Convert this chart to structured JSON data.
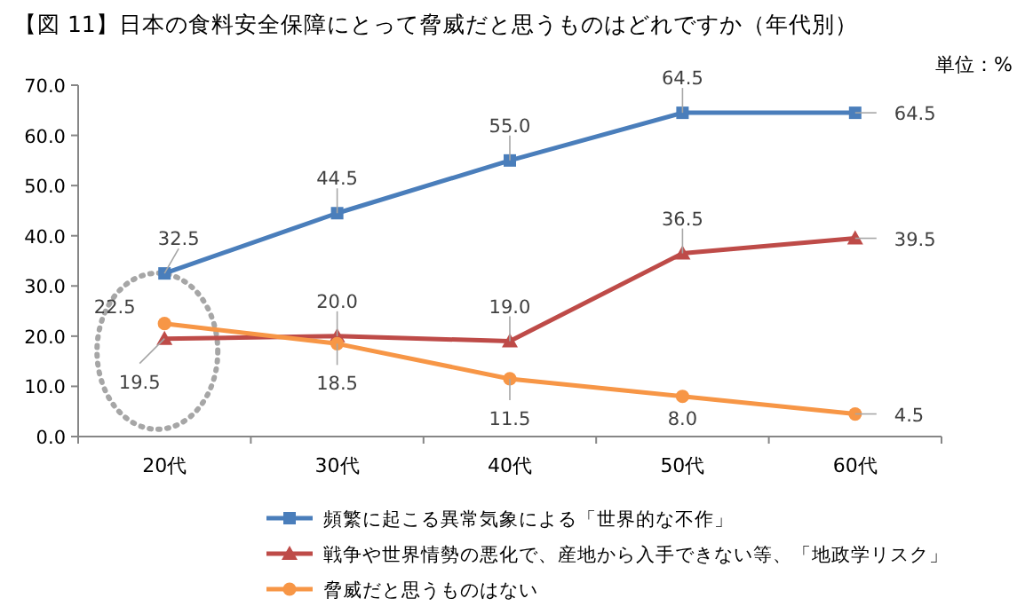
{
  "chart_data": {
    "type": "line",
    "title": "【図 11】日本の食料安全保障にとって脅威だと思うものはどれですか（年代別）",
    "annotations": [
      "単位：%"
    ],
    "categories": [
      "20代",
      "30代",
      "40代",
      "50代",
      "60代"
    ],
    "ylim": [
      0,
      70
    ],
    "yticks": [
      {
        "value": 0,
        "label": "0.0"
      },
      {
        "value": 10,
        "label": "10.0"
      },
      {
        "value": 20,
        "label": "20.0"
      },
      {
        "value": 30,
        "label": "30.0"
      },
      {
        "value": 40,
        "label": "40.0"
      },
      {
        "value": 50,
        "label": "50.0"
      },
      {
        "value": 60,
        "label": "60.0"
      },
      {
        "value": 70,
        "label": "70.0"
      }
    ],
    "grid": false,
    "legend": "bottom",
    "series": [
      {
        "name": "頻繁に起こる異常気象による「世界的な不作」",
        "color": "#4a7ebb",
        "marker": "square",
        "values": [
          32.5,
          44.5,
          55.0,
          64.5,
          64.5
        ],
        "value_labels": [
          "32.5",
          "44.5",
          "55.0",
          "64.5",
          "64.5"
        ]
      },
      {
        "name": "戦争や世界情勢の悪化で、産地から入手できない等、「地政学リスク」",
        "color": "#be4b48",
        "marker": "triangle",
        "values": [
          19.5,
          20.0,
          19.0,
          36.5,
          39.5
        ],
        "value_labels": [
          "19.5",
          "20.0",
          "19.0",
          "36.5",
          "39.5"
        ]
      },
      {
        "name": "脅威だと思うものはない",
        "color": "#f79646",
        "marker": "circle",
        "values": [
          22.5,
          18.5,
          11.5,
          8.0,
          4.5
        ],
        "value_labels": [
          "22.5",
          "18.5",
          "11.5",
          "8.0",
          "4.5"
        ]
      }
    ]
  }
}
